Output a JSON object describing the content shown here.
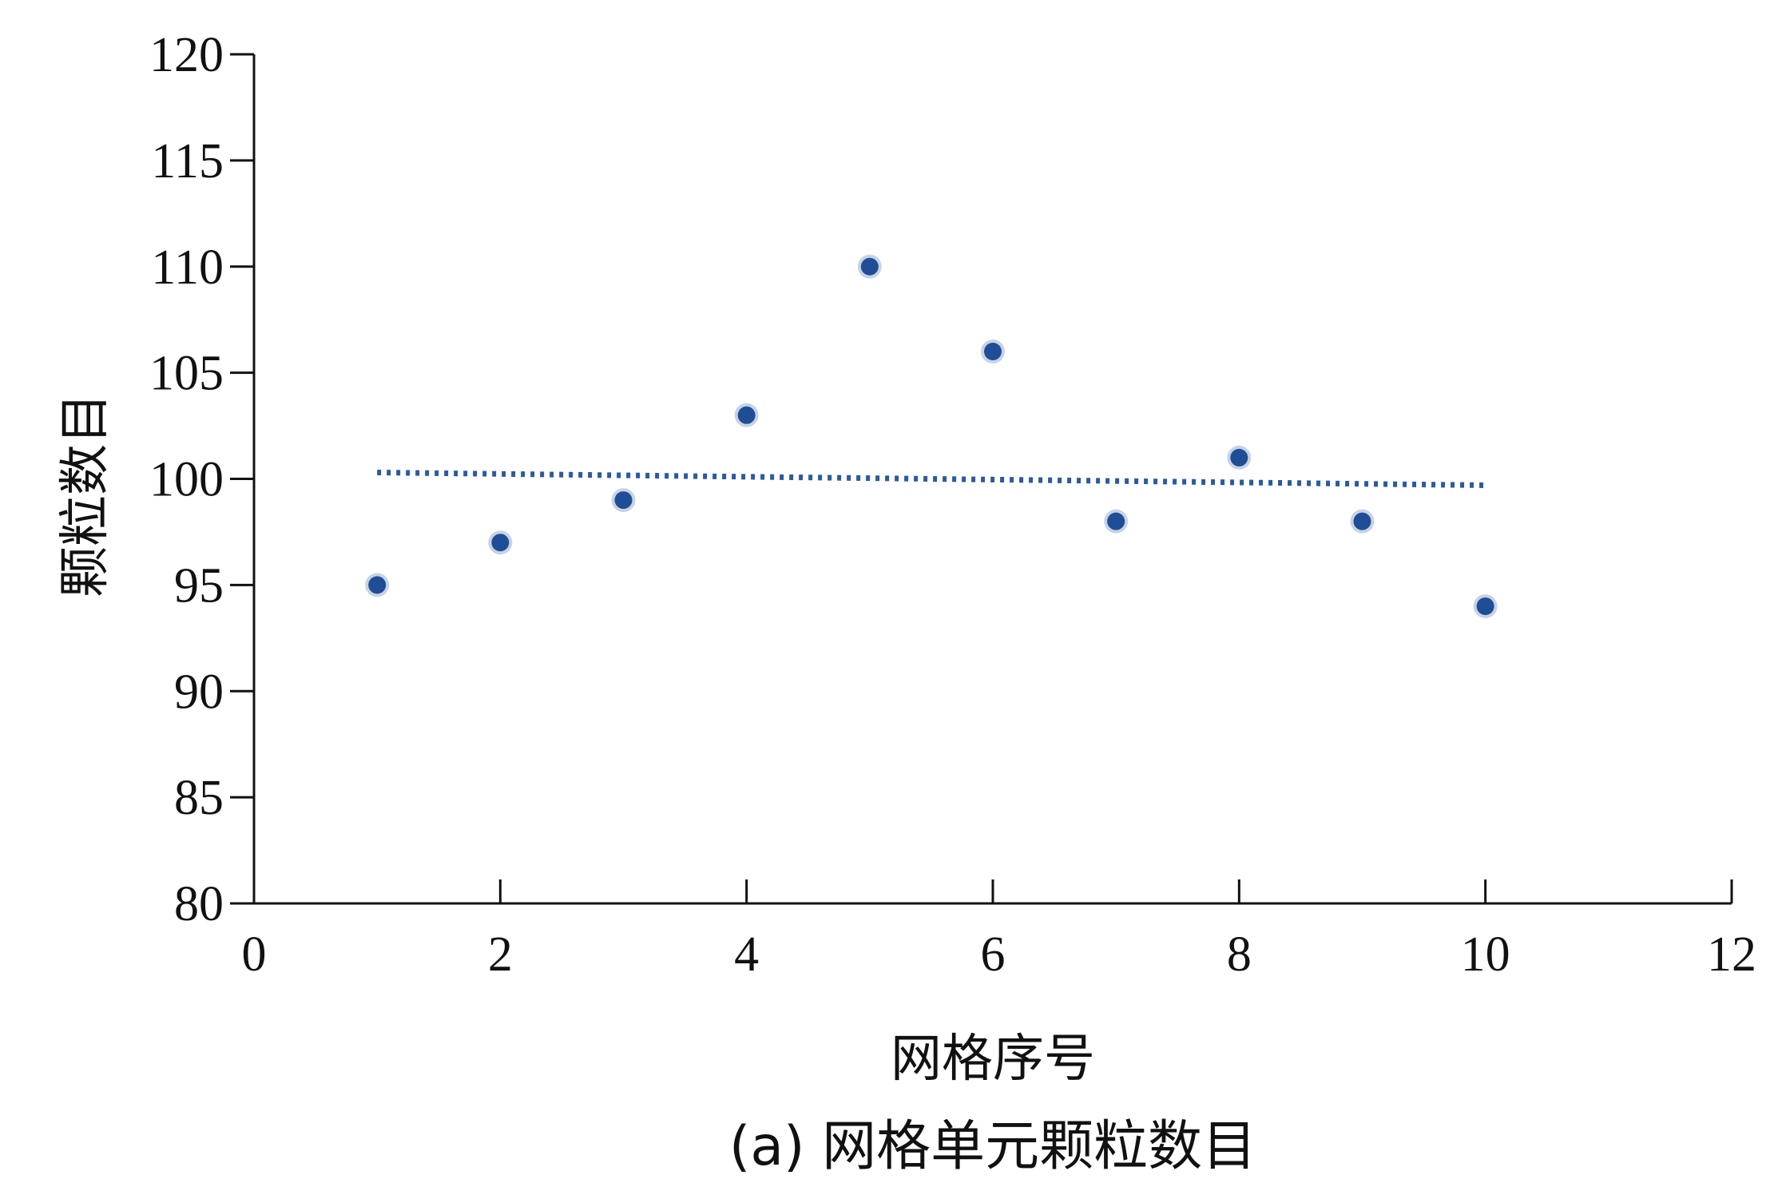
{
  "chart_data": {
    "type": "scatter",
    "title": "",
    "caption": "(a) 网格单元颗粒数目",
    "xlabel": "网格序号",
    "ylabel": "颗粒数目",
    "xlim": [
      0,
      12
    ],
    "ylim": [
      80,
      120
    ],
    "xticks": [
      0,
      2,
      4,
      6,
      8,
      10,
      12
    ],
    "yticks": [
      80,
      85,
      90,
      95,
      100,
      105,
      110,
      115,
      120
    ],
    "grid": false,
    "legend": "none",
    "series": [
      {
        "x": [
          1,
          2,
          3,
          4,
          5,
          6,
          7,
          8,
          9,
          10
        ],
        "y": [
          95,
          97,
          99,
          103,
          110,
          106,
          98,
          101,
          98,
          94
        ],
        "color": "#1f4e96"
      }
    ],
    "trendline": {
      "style": "dotted",
      "color": "#2a5a9e",
      "x": [
        1,
        10
      ],
      "y": [
        100.3,
        99.7
      ]
    }
  }
}
